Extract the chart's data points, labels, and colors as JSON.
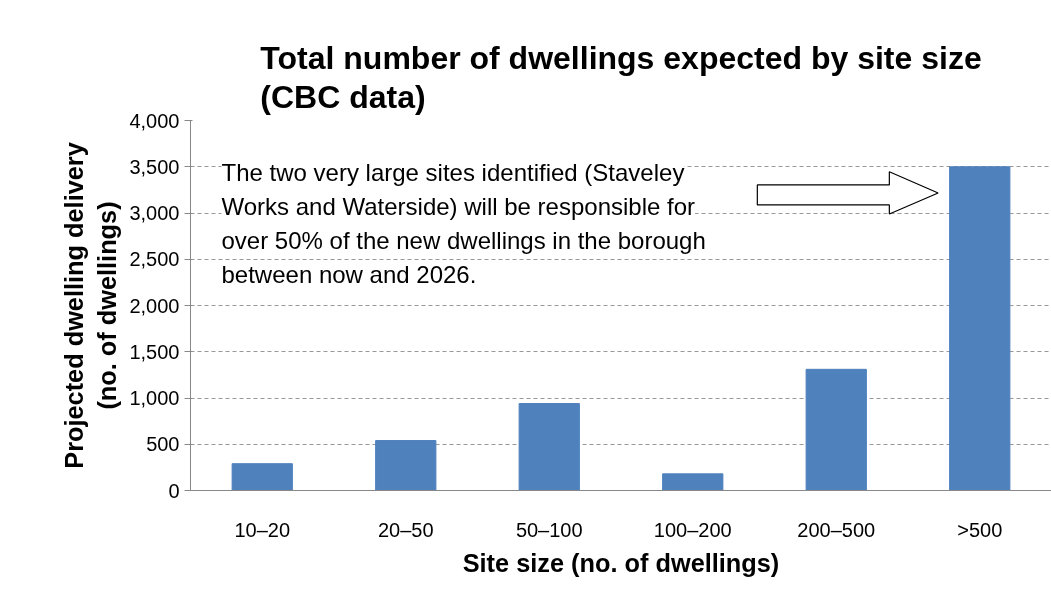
{
  "chart_data": {
    "type": "bar",
    "title": "Total number of dwellings expected by site size (CBC data)",
    "xlabel": "Site size (no. of dwellings)",
    "ylabel": "Projected dwelling delivery (no. of dwellings)",
    "categories": [
      "10–20",
      "20–50",
      "50–100",
      "100–200",
      "200–500",
      ">500"
    ],
    "series": [
      {
        "color": "#4f81bd",
        "values": [
          290,
          540,
          940,
          180,
          1310,
          3500
        ]
      }
    ],
    "ylim": [
      0,
      4000
    ],
    "yticks": [
      {
        "value": 0,
        "label": "0"
      },
      {
        "value": 500,
        "label": "500"
      },
      {
        "value": 1000,
        "label": "1,000"
      },
      {
        "value": 1500,
        "label": "1,500"
      },
      {
        "value": 2000,
        "label": "2,000"
      },
      {
        "value": 2500,
        "label": "2,500"
      },
      {
        "value": 3000,
        "label": "3,000"
      },
      {
        "value": 3500,
        "label": "3,500"
      },
      {
        "value": 4000,
        "label": "4,000"
      }
    ],
    "grid": "y",
    "annotations": [
      "The two very large sites identified (Staveley Works and Waterside) will be responsible for over 50% of the new dwellings in the borough between now and 2026."
    ]
  }
}
